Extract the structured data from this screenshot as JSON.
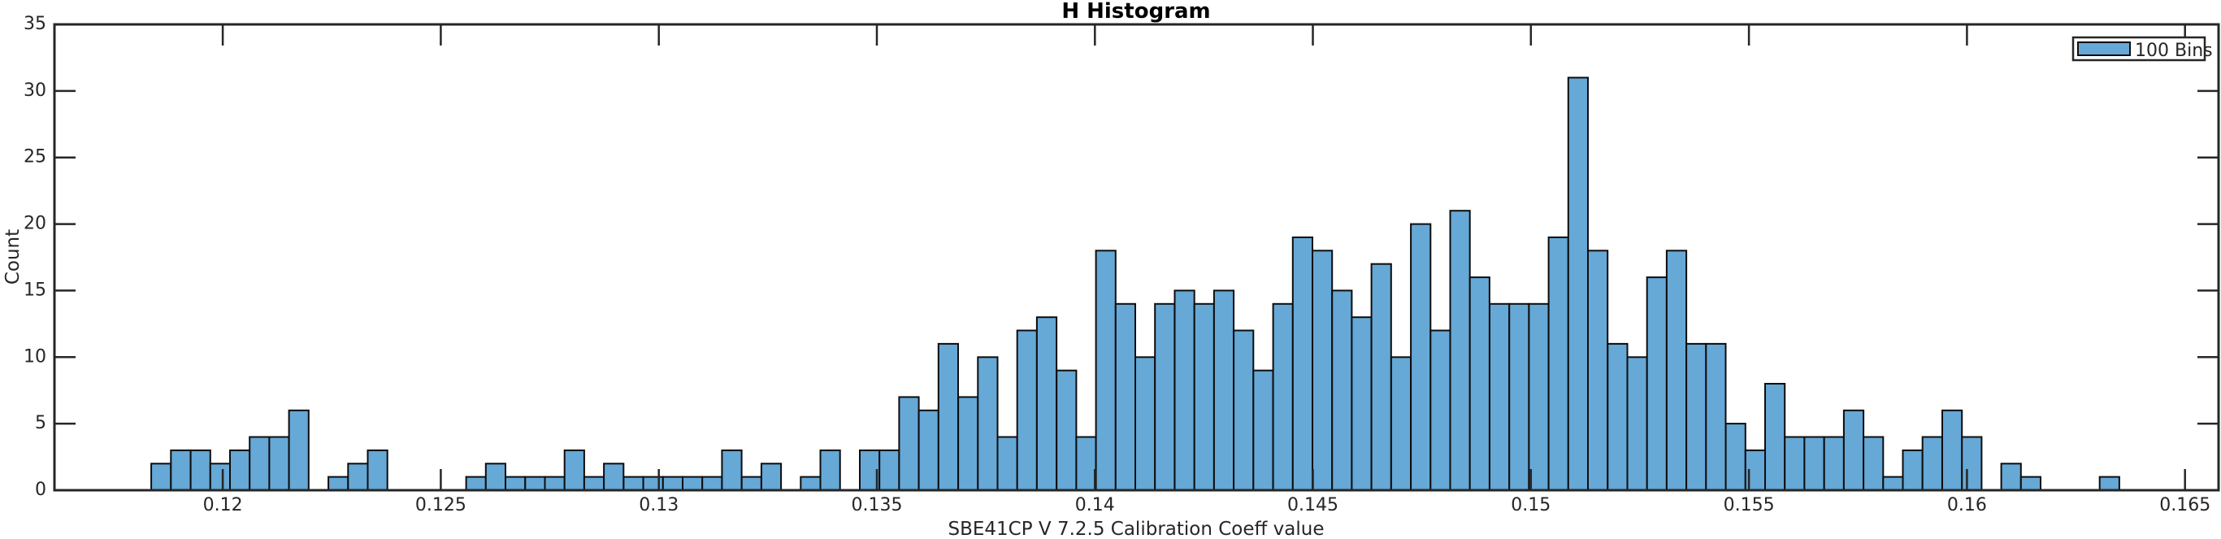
{
  "figure": {
    "title": "H Histogram",
    "xlabel": "SBE41CP V 7.2.5 Calibration Coeff value",
    "ylabel": "Count",
    "legend_label": "100 Bins"
  },
  "chart_data": {
    "type": "bar",
    "subtype": "histogram",
    "title": "H Histogram",
    "xlabel": "SBE41CP V 7.2.5 Calibration Coeff value",
    "ylabel": "Count",
    "legend_label": "100 Bins",
    "legend_position": "northeast",
    "grid": false,
    "n_bins": 100,
    "bin_start": 0.11836,
    "bin_width": 0.00045135,
    "counts": [
      2,
      3,
      3,
      2,
      3,
      4,
      4,
      6,
      0,
      1,
      2,
      3,
      0,
      0,
      0,
      0,
      1,
      2,
      1,
      1,
      1,
      3,
      1,
      2,
      1,
      1,
      1,
      1,
      1,
      3,
      1,
      2,
      0,
      1,
      3,
      0,
      3,
      3,
      7,
      6,
      11,
      7,
      10,
      4,
      12,
      13,
      9,
      4,
      18,
      14,
      10,
      14,
      15,
      14,
      15,
      12,
      9,
      14,
      19,
      18,
      15,
      13,
      17,
      10,
      20,
      12,
      21,
      16,
      14,
      14,
      14,
      19,
      31,
      18,
      11,
      10,
      16,
      18,
      11,
      11,
      5,
      3,
      8,
      4,
      4,
      4,
      6,
      4,
      1,
      3,
      4,
      6,
      4,
      0,
      2,
      1,
      0,
      0,
      0,
      1
    ],
    "xlim": [
      0.11614,
      0.16577
    ],
    "ylim": [
      0,
      35
    ],
    "x_ticks": [
      0.12,
      0.125,
      0.13,
      0.135,
      0.14,
      0.145,
      0.15,
      0.155,
      0.16,
      0.165
    ],
    "x_tick_labels": [
      "0.12",
      "0.125",
      "0.13",
      "0.135",
      "0.14",
      "0.145",
      "0.15",
      "0.155",
      "0.16",
      "0.165"
    ],
    "y_ticks": [
      0,
      5,
      10,
      15,
      20,
      25,
      30,
      35
    ],
    "y_tick_labels": [
      "0",
      "5",
      "10",
      "15",
      "20",
      "25",
      "30",
      "35"
    ],
    "colors": {
      "bar_fill": "#66A8D6",
      "bar_edge": "#0d0d0d",
      "axes": "#262626",
      "text": "#262626",
      "background": "#ffffff"
    }
  }
}
